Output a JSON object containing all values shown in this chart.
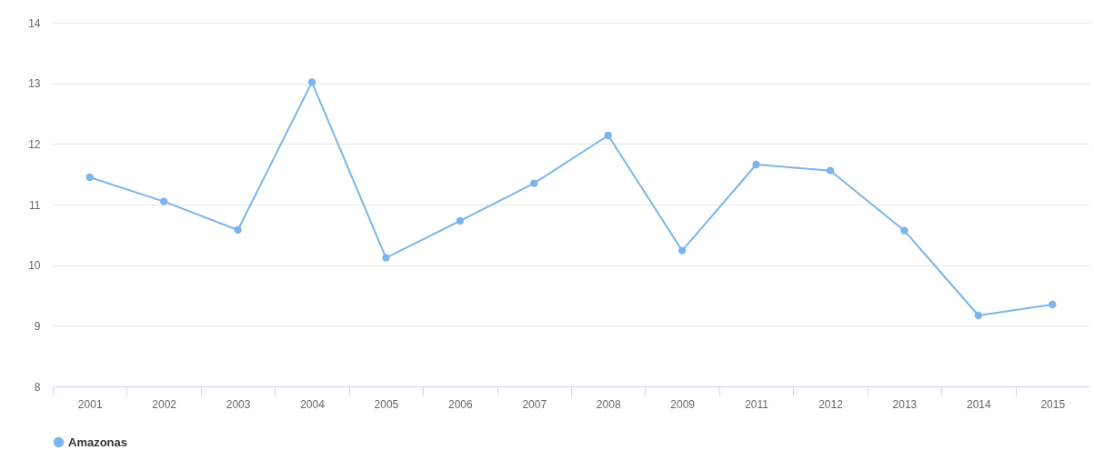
{
  "chart_data": {
    "type": "line",
    "categories": [
      "2001",
      "2002",
      "2003",
      "2004",
      "2005",
      "2006",
      "2007",
      "2008",
      "2009",
      "2011",
      "2012",
      "2013",
      "2014",
      "2015"
    ],
    "series": [
      {
        "name": "Amazonas",
        "color": "#7cb5ec",
        "values": [
          11.45,
          11.05,
          10.58,
          13.02,
          10.12,
          10.73,
          11.35,
          12.14,
          10.24,
          11.66,
          11.56,
          10.57,
          9.17,
          9.35
        ]
      }
    ],
    "ylim": [
      8,
      14
    ],
    "yticks": [
      8,
      9,
      10,
      11,
      12,
      13,
      14
    ],
    "grid": "y",
    "legend": "bottom",
    "marker": "circle"
  }
}
